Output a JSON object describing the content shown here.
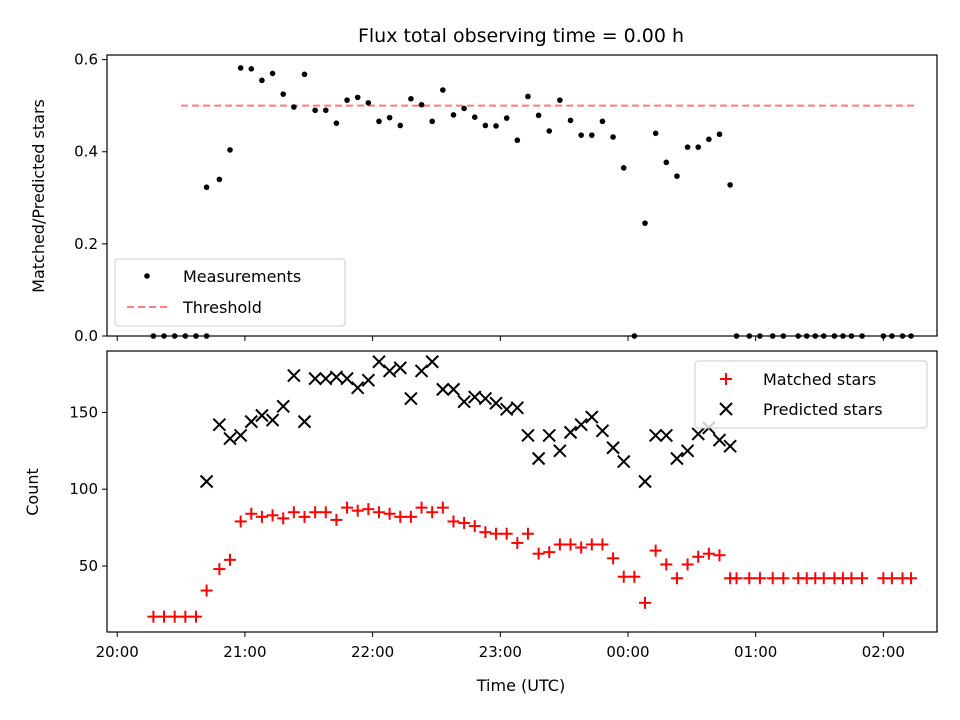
{
  "chart_data": [
    {
      "type": "scatter",
      "title": "Flux total observing time = 0.00 h",
      "xlabel": "",
      "ylabel": "Matched/Predicted stars",
      "ylim": [
        0,
        0.61
      ],
      "yticks": [
        0.0,
        0.2,
        0.4,
        0.6
      ],
      "ytick_labels": [
        "0.0",
        "0.2",
        "0.4",
        "0.6"
      ],
      "grid": false,
      "legend_position": "lower-left",
      "series": [
        {
          "name": "Measurements",
          "kind": "points",
          "color": "#000000",
          "points": [
            [
              "20:17",
              0.0
            ],
            [
              "20:22",
              0.0
            ],
            [
              "20:27",
              0.0
            ],
            [
              "20:32",
              0.0
            ],
            [
              "20:37",
              0.0
            ],
            [
              "20:42",
              0.0
            ],
            [
              "20:42",
              0.323
            ],
            [
              "20:48",
              0.34
            ],
            [
              "20:53",
              0.404
            ],
            [
              "20:58",
              0.582
            ],
            [
              "21:03",
              0.58
            ],
            [
              "21:08",
              0.555
            ],
            [
              "21:13",
              0.57
            ],
            [
              "21:18",
              0.525
            ],
            [
              "21:23",
              0.497
            ],
            [
              "21:28",
              0.568
            ],
            [
              "21:33",
              0.49
            ],
            [
              "21:38",
              0.49
            ],
            [
              "21:43",
              0.462
            ],
            [
              "21:48",
              0.512
            ],
            [
              "21:53",
              0.518
            ],
            [
              "21:58",
              0.506
            ],
            [
              "22:03",
              0.466
            ],
            [
              "22:08",
              0.474
            ],
            [
              "22:13",
              0.457
            ],
            [
              "22:18",
              0.515
            ],
            [
              "22:23",
              0.502
            ],
            [
              "22:28",
              0.466
            ],
            [
              "22:33",
              0.534
            ],
            [
              "22:38",
              0.48
            ],
            [
              "22:43",
              0.494
            ],
            [
              "22:48",
              0.475
            ],
            [
              "22:53",
              0.457
            ],
            [
              "22:58",
              0.456
            ],
            [
              "23:03",
              0.473
            ],
            [
              "23:08",
              0.425
            ],
            [
              "23:13",
              0.52
            ],
            [
              "23:18",
              0.479
            ],
            [
              "23:23",
              0.445
            ],
            [
              "23:28",
              0.512
            ],
            [
              "23:33",
              0.468
            ],
            [
              "23:38",
              0.436
            ],
            [
              "23:43",
              0.436
            ],
            [
              "23:48",
              0.466
            ],
            [
              "23:53",
              0.432
            ],
            [
              "23:58",
              0.365
            ],
            [
              "00:03",
              0.0
            ],
            [
              "00:08",
              0.245
            ],
            [
              "00:13",
              0.44
            ],
            [
              "00:18",
              0.377
            ],
            [
              "00:23",
              0.347
            ],
            [
              "00:28",
              0.41
            ],
            [
              "00:33",
              0.41
            ],
            [
              "00:38",
              0.427
            ],
            [
              "00:43",
              0.438
            ],
            [
              "00:48",
              0.328
            ],
            [
              "00:51",
              0.0
            ],
            [
              "00:57",
              0.0
            ],
            [
              "01:02",
              0.0
            ],
            [
              "01:08",
              0.0
            ],
            [
              "01:13",
              0.0
            ],
            [
              "01:20",
              0.0
            ],
            [
              "01:24",
              0.0
            ],
            [
              "01:28",
              0.0
            ],
            [
              "01:32",
              0.0
            ],
            [
              "01:37",
              0.0
            ],
            [
              "01:41",
              0.0
            ],
            [
              "01:45",
              0.0
            ],
            [
              "01:50",
              0.0
            ],
            [
              "02:00",
              0.0
            ],
            [
              "02:04",
              0.0
            ],
            [
              "02:09",
              0.0
            ],
            [
              "02:13",
              0.0
            ]
          ]
        },
        {
          "name": "Threshold",
          "kind": "dashed-line",
          "color": "#ff7a7a",
          "points": [
            [
              "20:30",
              0.5
            ],
            [
              "02:15",
              0.5
            ]
          ]
        }
      ]
    },
    {
      "type": "scatter",
      "xlabel": "Time (UTC)",
      "ylabel": "Count",
      "ylim": [
        7,
        190
      ],
      "yticks": [
        50,
        100,
        150
      ],
      "ytick_labels": [
        "50",
        "100",
        "150"
      ],
      "xticks": [
        "20:00",
        "21:00",
        "22:00",
        "23:00",
        "00:00",
        "01:00",
        "02:00"
      ],
      "grid": false,
      "legend_position": "top-right",
      "series": [
        {
          "name": "Matched stars",
          "marker": "plus",
          "color": "#ff0000",
          "points": [
            [
              "20:17",
              17
            ],
            [
              "20:22",
              17
            ],
            [
              "20:27",
              17
            ],
            [
              "20:32",
              17
            ],
            [
              "20:37",
              17
            ],
            [
              "20:42",
              34
            ],
            [
              "20:48",
              48
            ],
            [
              "20:53",
              54
            ],
            [
              "20:58",
              79
            ],
            [
              "21:03",
              84
            ],
            [
              "21:08",
              82
            ],
            [
              "21:13",
              83
            ],
            [
              "21:18",
              81
            ],
            [
              "21:23",
              85
            ],
            [
              "21:28",
              82
            ],
            [
              "21:33",
              85
            ],
            [
              "21:38",
              85
            ],
            [
              "21:43",
              80
            ],
            [
              "21:48",
              88
            ],
            [
              "21:53",
              86
            ],
            [
              "21:58",
              87
            ],
            [
              "22:03",
              85
            ],
            [
              "22:08",
              84
            ],
            [
              "22:13",
              82
            ],
            [
              "22:18",
              82
            ],
            [
              "22:23",
              88
            ],
            [
              "22:28",
              85
            ],
            [
              "22:33",
              88
            ],
            [
              "22:38",
              79
            ],
            [
              "22:43",
              78
            ],
            [
              "22:48",
              76
            ],
            [
              "22:53",
              72
            ],
            [
              "22:58",
              71
            ],
            [
              "23:03",
              71
            ],
            [
              "23:08",
              65
            ],
            [
              "23:13",
              71
            ],
            [
              "23:18",
              58
            ],
            [
              "23:23",
              59
            ],
            [
              "23:28",
              64
            ],
            [
              "23:33",
              64
            ],
            [
              "23:38",
              62
            ],
            [
              "23:43",
              64
            ],
            [
              "23:48",
              64
            ],
            [
              "23:53",
              55
            ],
            [
              "23:58",
              43
            ],
            [
              "00:03",
              43
            ],
            [
              "00:08",
              26
            ],
            [
              "00:13",
              60
            ],
            [
              "00:18",
              51
            ],
            [
              "00:23",
              42
            ],
            [
              "00:28",
              51
            ],
            [
              "00:33",
              56
            ],
            [
              "00:38",
              58
            ],
            [
              "00:43",
              57
            ],
            [
              "00:48",
              42
            ],
            [
              "00:51",
              42
            ],
            [
              "00:57",
              42
            ],
            [
              "01:02",
              42
            ],
            [
              "01:08",
              42
            ],
            [
              "01:13",
              42
            ],
            [
              "01:20",
              42
            ],
            [
              "01:24",
              42
            ],
            [
              "01:28",
              42
            ],
            [
              "01:32",
              42
            ],
            [
              "01:37",
              42
            ],
            [
              "01:41",
              42
            ],
            [
              "01:45",
              42
            ],
            [
              "01:50",
              42
            ],
            [
              "02:00",
              42
            ],
            [
              "02:04",
              42
            ],
            [
              "02:09",
              42
            ],
            [
              "02:13",
              42
            ]
          ]
        },
        {
          "name": "Predicted stars",
          "marker": "x",
          "color": "#000000",
          "points": [
            [
              "20:42",
              105
            ],
            [
              "20:48",
              142
            ],
            [
              "20:53",
              133
            ],
            [
              "20:58",
              135
            ],
            [
              "21:03",
              144
            ],
            [
              "21:08",
              148
            ],
            [
              "21:13",
              145
            ],
            [
              "21:18",
              154
            ],
            [
              "21:23",
              174
            ],
            [
              "21:28",
              144
            ],
            [
              "21:33",
              172
            ],
            [
              "21:38",
              172
            ],
            [
              "21:43",
              173
            ],
            [
              "21:48",
              172
            ],
            [
              "21:53",
              166
            ],
            [
              "21:58",
              171
            ],
            [
              "22:03",
              183
            ],
            [
              "22:08",
              177
            ],
            [
              "22:13",
              179
            ],
            [
              "22:18",
              159
            ],
            [
              "22:23",
              177
            ],
            [
              "22:28",
              183
            ],
            [
              "22:33",
              165
            ],
            [
              "22:38",
              165
            ],
            [
              "22:43",
              157
            ],
            [
              "22:48",
              160
            ],
            [
              "22:53",
              159
            ],
            [
              "22:58",
              156
            ],
            [
              "23:03",
              152
            ],
            [
              "23:08",
              153
            ],
            [
              "23:13",
              135
            ],
            [
              "23:18",
              120
            ],
            [
              "23:23",
              135
            ],
            [
              "23:28",
              125
            ],
            [
              "23:33",
              137
            ],
            [
              "23:38",
              142
            ],
            [
              "23:43",
              147
            ],
            [
              "23:48",
              138
            ],
            [
              "23:53",
              127
            ],
            [
              "23:58",
              118
            ],
            [
              "00:08",
              105
            ],
            [
              "00:13",
              135
            ],
            [
              "00:18",
              135
            ],
            [
              "00:23",
              120
            ],
            [
              "00:28",
              125
            ],
            [
              "00:33",
              136
            ],
            [
              "00:38",
              140
            ],
            [
              "00:43",
              132
            ],
            [
              "00:48",
              128
            ]
          ]
        }
      ]
    }
  ]
}
